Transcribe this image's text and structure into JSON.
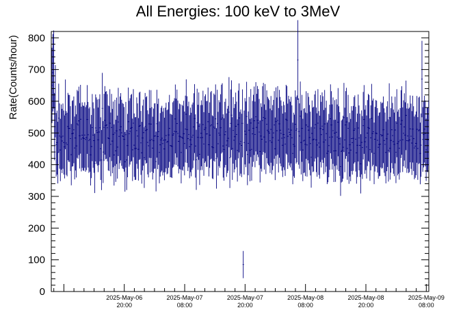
{
  "chart_data": {
    "type": "scatter",
    "title": "All Energies:  100 keV to 3MeV",
    "xlabel": "",
    "ylabel": "Rate(Counts/hour)",
    "ylim": [
      0,
      820
    ],
    "yticks": [
      0,
      100,
      200,
      300,
      400,
      500,
      600,
      700,
      800
    ],
    "x_is_time": true,
    "xlim": [
      "2025-May-06 05:30",
      "2025-May-09 08:30"
    ],
    "xticks": [
      {
        "date": "2025-May-06",
        "time": "20:00"
      },
      {
        "date": "2025-May-07",
        "time": "08:00"
      },
      {
        "date": "2025-May-07",
        "time": "20:00"
      },
      {
        "date": "2025-May-08",
        "time": "08:00"
      },
      {
        "date": "2025-May-08",
        "time": "20:00"
      },
      {
        "date": "2025-May-09",
        "time": "08:00"
      }
    ],
    "series": [
      {
        "color": "#00007f",
        "binning": "1 point per ~10 min, each with vertical error bar (±sqrt(N))",
        "typical_mean": 490,
        "typical_range": [
          380,
          620
        ],
        "notable_points": [
          {
            "x": "2025-May-06 05:40",
            "y": 650
          },
          {
            "x": "2025-May-06 05:50",
            "y": 690
          },
          {
            "x": "2025-May-06 06:00",
            "y": 700
          },
          {
            "x": "2025-May-06 06:20",
            "y": 600
          },
          {
            "x": "2025-May-07 19:40",
            "y": 85
          },
          {
            "x": "2025-May-08 06:30",
            "y": 730
          },
          {
            "x": "2025-May-09 07:10",
            "y": 670
          }
        ]
      }
    ]
  }
}
